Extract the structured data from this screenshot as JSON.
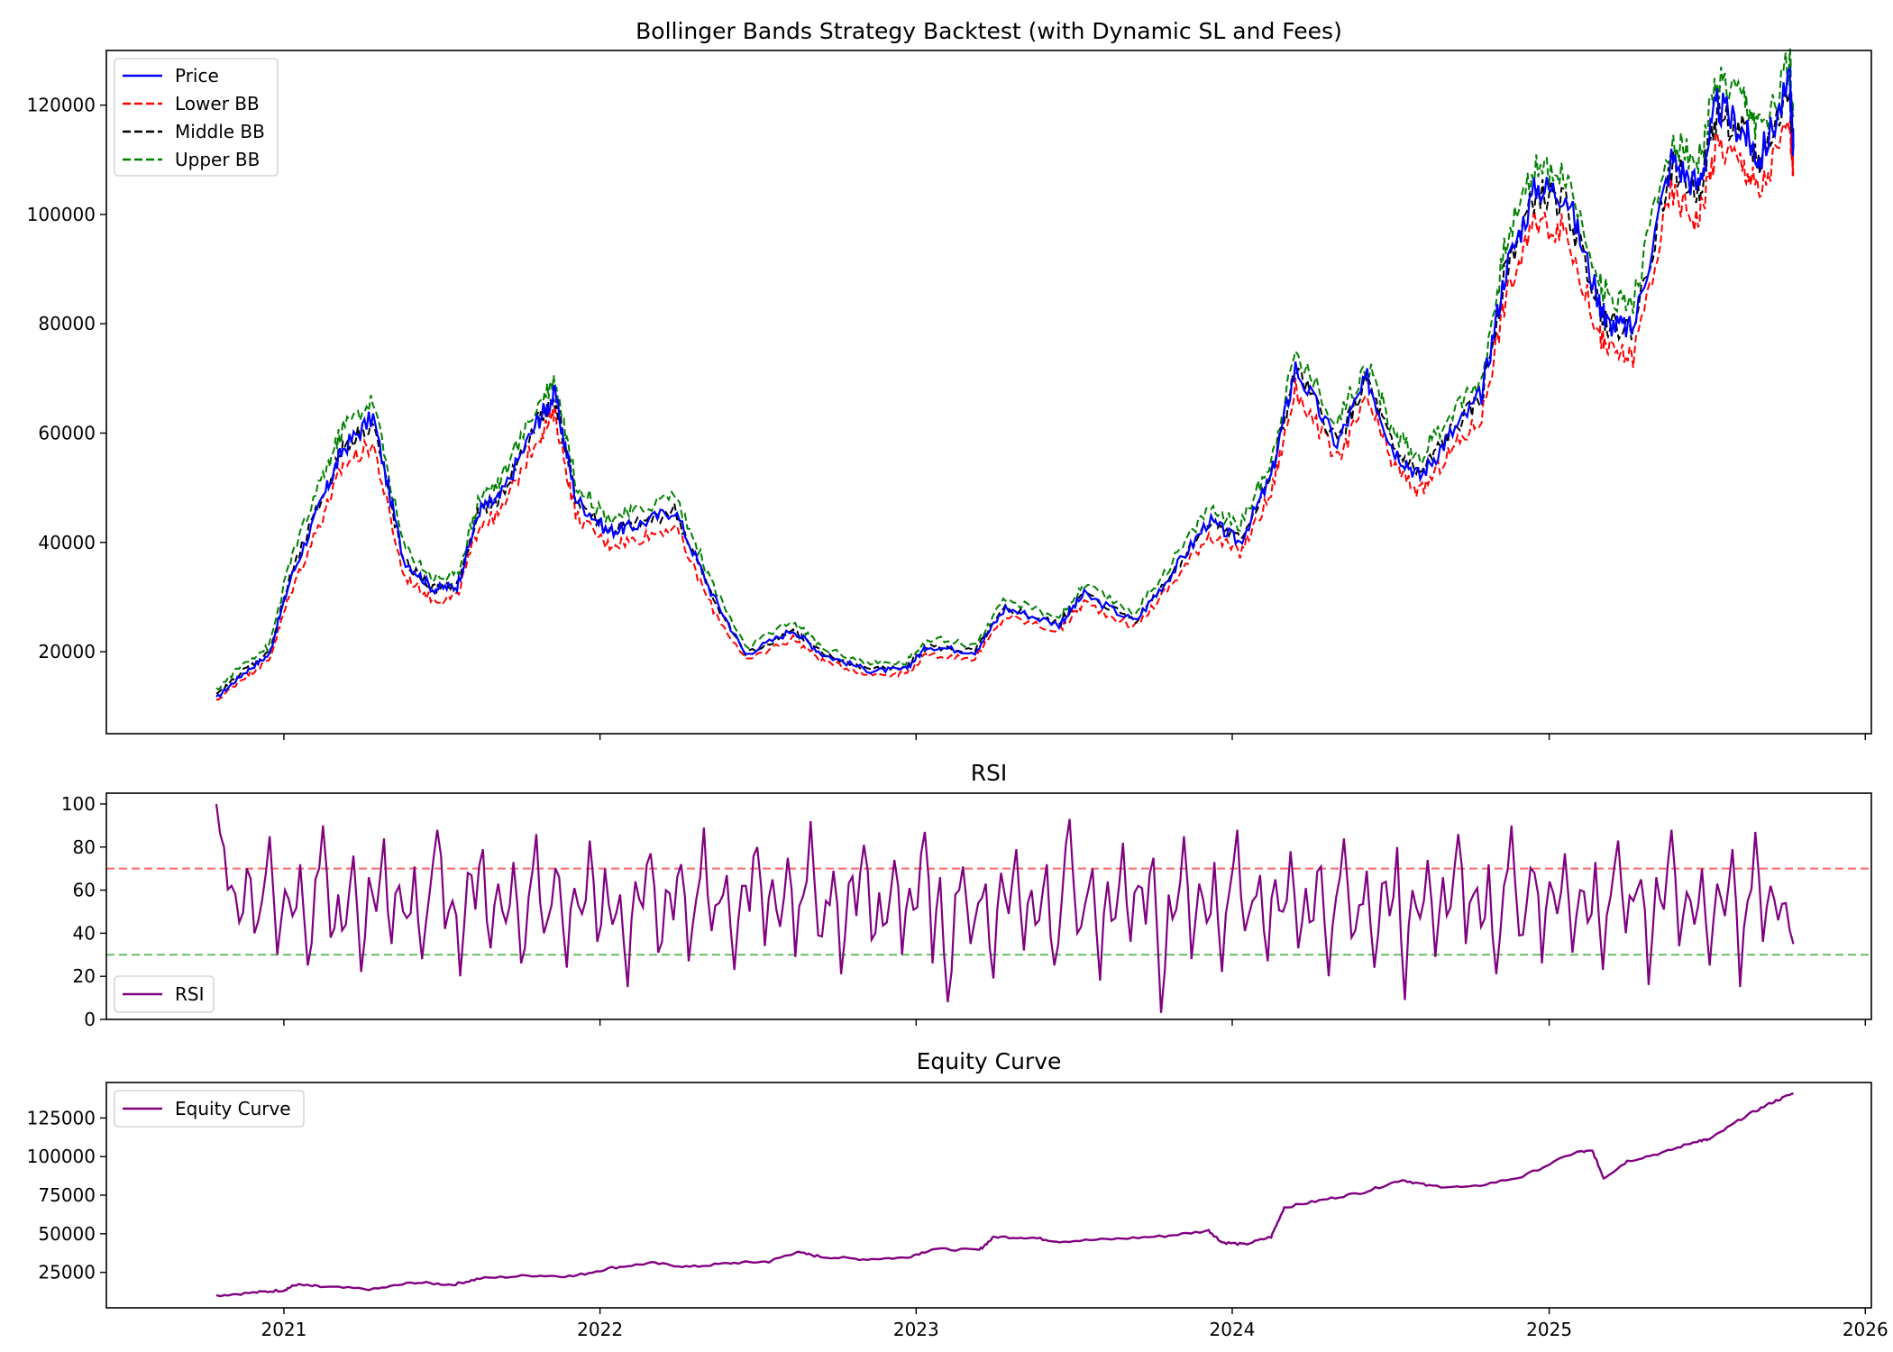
{
  "chart_data": [
    {
      "type": "line",
      "title": "Bollinger Bands Strategy Backtest (with Dynamic SL and Fees)",
      "xlabel": "",
      "ylabel": "",
      "xlim": [
        "2020-06-10",
        "2026-01-08"
      ],
      "ylim": [
        5000,
        130000
      ],
      "x_ticks": [
        "2021",
        "2022",
        "2023",
        "2024",
        "2025",
        "2026"
      ],
      "y_ticks": [
        20000,
        40000,
        60000,
        80000,
        100000,
        120000
      ],
      "grid": false,
      "legend": "upper-left",
      "x": [
        "2020-10-15",
        "2020-11-15",
        "2020-12-15",
        "2021-01-08",
        "2021-02-15",
        "2021-03-10",
        "2021-04-14",
        "2021-05-19",
        "2021-06-22",
        "2021-07-20",
        "2021-08-15",
        "2021-09-07",
        "2021-10-20",
        "2021-11-10",
        "2021-12-04",
        "2022-01-10",
        "2022-02-10",
        "2022-03-28",
        "2022-05-09",
        "2022-06-18",
        "2022-08-12",
        "2022-09-15",
        "2022-11-09",
        "2022-12-20",
        "2023-01-14",
        "2023-03-10",
        "2023-04-14",
        "2023-06-15",
        "2023-07-14",
        "2023-09-11",
        "2023-10-24",
        "2023-12-05",
        "2024-01-10",
        "2024-02-15",
        "2024-03-14",
        "2024-05-01",
        "2024-06-05",
        "2024-07-05",
        "2024-08-05",
        "2024-09-06",
        "2024-10-15",
        "2024-11-12",
        "2024-12-17",
        "2025-01-20",
        "2025-02-28",
        "2025-03-10",
        "2025-04-08",
        "2025-05-22",
        "2025-06-22",
        "2025-07-14",
        "2025-08-14",
        "2025-09-01",
        "2025-10-06",
        "2025-10-10"
      ],
      "series": [
        {
          "name": "Price",
          "color": "#0000ff",
          "style": "solid",
          "values": [
            11500,
            16000,
            19500,
            33000,
            48000,
            57000,
            63000,
            37000,
            31500,
            32000,
            46000,
            48000,
            62000,
            67000,
            48000,
            42000,
            43000,
            46000,
            31000,
            19500,
            24000,
            19500,
            16500,
            16800,
            21000,
            20000,
            28000,
            25000,
            30500,
            25500,
            34500,
            44000,
            40000,
            52000,
            72000,
            58000,
            70000,
            57000,
            52000,
            59000,
            67000,
            90000,
            105000,
            104000,
            84000,
            80000,
            79000,
            110000,
            105000,
            120000,
            115000,
            110000,
            124000,
            112000
          ]
        },
        {
          "name": "Lower BB",
          "color": "#ff0000",
          "style": "dashed",
          "values": [
            11000,
            15200,
            18500,
            30500,
            45000,
            54000,
            58000,
            34000,
            29500,
            30000,
            43500,
            45000,
            59000,
            63500,
            45000,
            39500,
            40500,
            43000,
            28500,
            18300,
            22500,
            18300,
            15800,
            16000,
            19500,
            18800,
            26500,
            23800,
            29000,
            24500,
            32500,
            41500,
            38000,
            49000,
            68000,
            55000,
            66000,
            54000,
            49000,
            56000,
            63000,
            85000,
            99000,
            97000,
            78000,
            75000,
            74000,
            104000,
            99000,
            113000,
            109000,
            104000,
            117000,
            107000
          ]
        },
        {
          "name": "Middle BB",
          "color": "#000000",
          "style": "dashed",
          "values": [
            12000,
            16500,
            19800,
            33500,
            48500,
            57500,
            62000,
            36500,
            31500,
            32000,
            46000,
            48000,
            62000,
            66500,
            48000,
            42000,
            43000,
            46000,
            30500,
            19500,
            24000,
            19500,
            16800,
            17000,
            21000,
            20000,
            28000,
            25000,
            30500,
            25800,
            34500,
            44000,
            40500,
            52000,
            71500,
            58500,
            69500,
            57000,
            52500,
            59500,
            66500,
            90000,
            104000,
            102000,
            83000,
            80000,
            79000,
            109000,
            104000,
            118500,
            114500,
            109500,
            122500,
            112500
          ]
        },
        {
          "name": "Upper BB",
          "color": "#008000",
          "style": "dashed",
          "values": [
            13000,
            17800,
            21000,
            36500,
            52000,
            61000,
            66000,
            39500,
            33500,
            34000,
            48500,
            51000,
            65000,
            70000,
            51000,
            44500,
            45500,
            49000,
            33000,
            20700,
            25500,
            20700,
            17800,
            18000,
            22500,
            21200,
            29500,
            26300,
            32000,
            27200,
            36500,
            46500,
            43000,
            55000,
            75000,
            62000,
            73000,
            60000,
            55500,
            63000,
            70000,
            95000,
            109000,
            107000,
            88000,
            85000,
            84000,
            114000,
            109000,
            124000,
            120000,
            115000,
            128000,
            118000
          ]
        }
      ]
    },
    {
      "type": "line",
      "title": "RSI",
      "xlabel": "",
      "ylabel": "",
      "xlim": [
        "2020-06-10",
        "2026-01-08"
      ],
      "ylim": [
        0,
        105
      ],
      "x_ticks": [
        "2021",
        "2022",
        "2023",
        "2024",
        "2025",
        "2026"
      ],
      "y_ticks": [
        0,
        20,
        40,
        60,
        80,
        100
      ],
      "grid": false,
      "legend": "lower-left",
      "reference_lines": [
        {
          "y": 70,
          "color": "#ff6666",
          "style": "dashed"
        },
        {
          "y": 30,
          "color": "#66bb66",
          "style": "dashed"
        }
      ],
      "series": [
        {
          "name": "RSI",
          "color": "#800080",
          "style": "solid",
          "x_start": "2020-10-15",
          "x_end": "2025-10-10",
          "range": [
            3,
            100
          ],
          "values": [
            100,
            80,
            62,
            45,
            70,
            40,
            55,
            85,
            30,
            60,
            48,
            72,
            25,
            65,
            90,
            38,
            58,
            44,
            76,
            22,
            66,
            50,
            84,
            35,
            62,
            47,
            71,
            28,
            59,
            88,
            42,
            55,
            20,
            68,
            51,
            79,
            33,
            63,
            45,
            73,
            26,
            57,
            86,
            40,
            53,
            66,
            24,
            61,
            49,
            83,
            36,
            70,
            44,
            58,
            15,
            64,
            52,
            77,
            31,
            60,
            46,
            72,
            27,
            56,
            89,
            41,
            54,
            67,
            23,
            62,
            50,
            80,
            34,
            65,
            43,
            75,
            29,
            57,
            92,
            39,
            55,
            69,
            21,
            63,
            48,
            81,
            37,
            59,
            45,
            74,
            30,
            61,
            52,
            87,
            26,
            66,
            8,
            58,
            71,
            35,
            54,
            63,
            19,
            68,
            49,
            79,
            32,
            60,
            46,
            72,
            25,
            57,
            93,
            40,
            53,
            70,
            18,
            64,
            47,
            82,
            36,
            62,
            44,
            75,
            3,
            58,
            51,
            85,
            28,
            63,
            45,
            73,
            22,
            60,
            88,
            41,
            55,
            67,
            27,
            65,
            50,
            78,
            33,
            61,
            46,
            71,
            20,
            57,
            84,
            38,
            53,
            69,
            24,
            63,
            48,
            80,
            9,
            60,
            47,
            74,
            29,
            66,
            52,
            86,
            35,
            58,
            43,
            72,
            21,
            62,
            90,
            39,
            54,
            68,
            26,
            64,
            49,
            77,
            31,
            60,
            45,
            73,
            23,
            57,
            83,
            40,
            55,
            65,
            16,
            66,
            51,
            88,
            34,
            59,
            44,
            70,
            25,
            63,
            48,
            79,
            15,
            55,
            87,
            36,
            62,
            46,
            54,
            35
          ]
        }
      ]
    },
    {
      "type": "line",
      "title": "Equity Curve",
      "xlabel": "",
      "ylabel": "",
      "xlim": [
        "2020-06-10",
        "2026-01-08"
      ],
      "ylim": [
        2000,
        148000
      ],
      "x_ticks": [
        "2021",
        "2022",
        "2023",
        "2024",
        "2025",
        "2026"
      ],
      "y_ticks": [
        25000,
        50000,
        75000,
        100000,
        125000
      ],
      "grid": false,
      "legend": "upper-left",
      "series": [
        {
          "name": "Equity Curve",
          "color": "#800080",
          "style": "solid",
          "x": [
            "2020-10-15",
            "2020-12-01",
            "2021-01-01",
            "2021-01-15",
            "2021-02-15",
            "2021-04-15",
            "2021-06-01",
            "2021-07-15",
            "2021-08-15",
            "2021-10-15",
            "2021-12-01",
            "2022-01-15",
            "2022-03-01",
            "2022-04-15",
            "2022-06-01",
            "2022-07-15",
            "2022-08-15",
            "2022-09-15",
            "2022-11-01",
            "2022-12-20",
            "2023-01-20",
            "2023-03-15",
            "2023-04-01",
            "2023-05-15",
            "2023-06-15",
            "2023-08-15",
            "2023-10-15",
            "2023-12-05",
            "2023-12-20",
            "2024-01-15",
            "2024-02-15",
            "2024-03-01",
            "2024-04-15",
            "2024-06-01",
            "2024-07-15",
            "2024-08-15",
            "2024-10-01",
            "2024-12-01",
            "2025-02-01",
            "2025-02-20",
            "2025-03-05",
            "2025-04-01",
            "2025-05-15",
            "2025-06-20",
            "2025-07-05",
            "2025-08-15",
            "2025-09-15",
            "2025-10-10"
          ],
          "values": [
            10000,
            12000,
            13500,
            17000,
            15500,
            14000,
            18500,
            17000,
            21000,
            23000,
            22500,
            28000,
            31000,
            28500,
            31000,
            32000,
            38000,
            35000,
            33500,
            34500,
            40000,
            39500,
            48000,
            47500,
            45000,
            46500,
            48500,
            52000,
            44500,
            43000,
            48000,
            67000,
            72000,
            77000,
            85000,
            81000,
            80000,
            87000,
            103000,
            103500,
            86000,
            97000,
            103000,
            110000,
            111000,
            126000,
            135000,
            141000
          ]
        }
      ]
    }
  ]
}
